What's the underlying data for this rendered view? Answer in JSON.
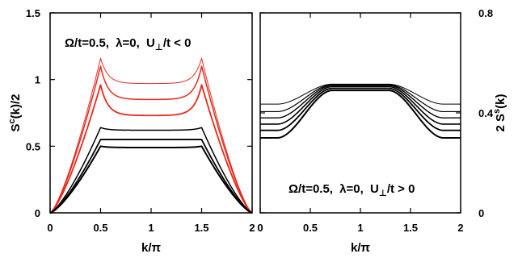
{
  "chart_data": [
    {
      "type": "line",
      "panel": "left",
      "annotation": {
        "omega": "Ω/t=0.5,",
        "lambda": "λ=0,",
        "u_main": "U",
        "u_sub": "⊥",
        "u_rest": "/t < 0"
      },
      "xlabel": "k/π",
      "ylabel": "S",
      "ylabel_sup": "c",
      "ylabel_rest": "(k)/2",
      "xlim": [
        0,
        2
      ],
      "ylim": [
        0,
        1.5
      ],
      "x_ticks": [
        0,
        0.5,
        1,
        1.5,
        2
      ],
      "x_tick_labels": [
        "0",
        "0.5",
        "1",
        "1.5",
        "2"
      ],
      "y_ticks": [
        0,
        0.5,
        1,
        1.5
      ],
      "y_tick_labels": [
        "0",
        "0.5",
        "1",
        "1.5"
      ],
      "series": [
        {
          "color": "#e8291c",
          "stroke": 1.0,
          "peak": 1.16,
          "plateau": 0.97,
          "end_value": 0
        },
        {
          "color": "#e8291c",
          "stroke": 1.5,
          "peak": 1.1,
          "plateau": 0.85,
          "end_value": 0
        },
        {
          "color": "#e8291c",
          "stroke": 1.8,
          "peak": 0.96,
          "plateau": 0.73,
          "end_value": 0
        },
        {
          "color": "#000000",
          "stroke": 1.5,
          "peak": 0.64,
          "plateau": 0.62,
          "end_value": 0
        },
        {
          "color": "#000000",
          "stroke": 1.8,
          "peak": 0.55,
          "plateau": 0.55,
          "end_value": 0
        },
        {
          "color": "#000000",
          "stroke": 2.0,
          "peak": 0.5,
          "plateau": 0.49,
          "end_value": 0
        }
      ]
    },
    {
      "type": "line",
      "panel": "right",
      "annotation": {
        "omega": "Ω/t=0.5,",
        "lambda": "λ=0,",
        "u_main": "U",
        "u_sub": "⊥",
        "u_rest": "/t > 0"
      },
      "xlabel": "k/π",
      "ylabel": "2 S",
      "ylabel_sup": "s",
      "ylabel_rest": "(k)",
      "xlim": [
        0,
        2
      ],
      "ylim": [
        0,
        0.8
      ],
      "x_ticks": [
        0,
        0.5,
        1,
        1.5,
        2
      ],
      "x_tick_labels": [
        "0",
        "0.5",
        "1",
        "1.5",
        "2"
      ],
      "y_ticks": [
        0,
        0.4,
        0.8
      ],
      "y_tick_labels": [
        "0",
        "0.4",
        "0.8"
      ],
      "series": [
        {
          "color": "#000000",
          "stroke": 1.0,
          "edge": 0.435,
          "top": 0.515
        },
        {
          "color": "#000000",
          "stroke": 1.2,
          "edge": 0.405,
          "top": 0.513
        },
        {
          "color": "#000000",
          "stroke": 1.4,
          "edge": 0.38,
          "top": 0.51
        },
        {
          "color": "#000000",
          "stroke": 1.6,
          "edge": 0.355,
          "top": 0.505
        },
        {
          "color": "#000000",
          "stroke": 1.8,
          "edge": 0.33,
          "top": 0.498
        },
        {
          "color": "#000000",
          "stroke": 2.0,
          "edge": 0.3,
          "top": 0.49
        }
      ]
    }
  ]
}
